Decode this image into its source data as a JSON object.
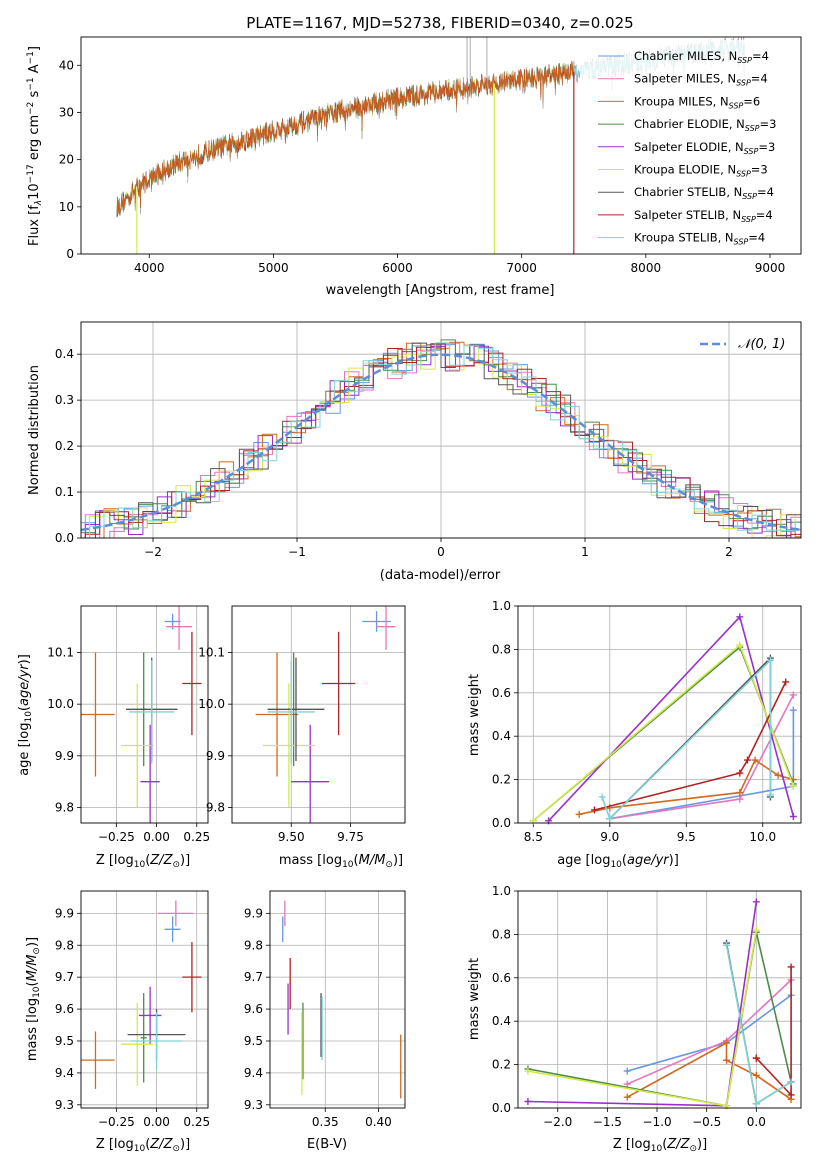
{
  "colors": {
    "chabrier_miles": "#6699e0",
    "salpeter_miles": "#e377c2",
    "kroupa_miles": "#d2691e",
    "chabrier_elodie": "#4a8c4a",
    "salpeter_elodie": "#9b30c8",
    "kroupa_elodie": "#d4e84a",
    "chabrier_stelib": "#555555",
    "salpeter_stelib": "#b22222",
    "kroupa_stelib": "#7fd3d8",
    "grid": "#b0b0b0",
    "gauss": "#5b8ed6"
  },
  "chart_data": [
    {
      "id": "spectrum",
      "type": "line",
      "title": "PLATE=1167, MJD=52738, FIBERID=0340, z=0.025",
      "xlabel": "wavelength [Angstrom, rest frame]",
      "ylabel_parts": [
        "Flux [f",
        "λ",
        "10",
        "−17",
        " erg cm",
        "−2",
        " s",
        "−1",
        " A",
        "−1",
        "]"
      ],
      "xlim": [
        3450,
        9250
      ],
      "ylim": [
        0,
        46
      ],
      "xticks": [
        4000,
        5000,
        6000,
        7000,
        8000,
        9000
      ],
      "yticks": [
        0,
        10,
        20,
        30,
        40
      ],
      "grid": false,
      "legend_position": "top-right",
      "legend": [
        {
          "label": "Chabrier MILES, N",
          "sub": "SSP",
          "val": "=4",
          "color": "chabrier_miles"
        },
        {
          "label": "Salpeter MILES, N",
          "sub": "SSP",
          "val": "=4",
          "color": "salpeter_miles"
        },
        {
          "label": "Kroupa MILES, N",
          "sub": "SSP",
          "val": "=6",
          "color": "kroupa_miles"
        },
        {
          "label": "Chabrier ELODIE, N",
          "sub": "SSP",
          "val": "=3",
          "color": "chabrier_elodie"
        },
        {
          "label": "Salpeter ELODIE, N",
          "sub": "SSP",
          "val": "=3",
          "color": "salpeter_elodie"
        },
        {
          "label": "Kroupa ELODIE, N",
          "sub": "SSP",
          "val": "=3",
          "color": "kroupa_elodie"
        },
        {
          "label": "Chabrier STELIB, N",
          "sub": "SSP",
          "val": "=4",
          "color": "chabrier_stelib"
        },
        {
          "label": "Salpeter STELIB, N",
          "sub": "SSP",
          "val": "=4",
          "color": "salpeter_stelib"
        },
        {
          "label": "Kroupa STELIB, N",
          "sub": "SSP",
          "val": "=4",
          "color": "kroupa_stelib"
        }
      ],
      "continuum": {
        "x": [
          3750,
          3900,
          4000,
          4200,
          4500,
          5000,
          5500,
          6000,
          6500,
          7000,
          7300,
          7500,
          8000,
          8500,
          8800
        ],
        "y": [
          10,
          14,
          16,
          19,
          22,
          26,
          30,
          33,
          35,
          37,
          38,
          39,
          41,
          43,
          44
        ]
      },
      "data_range": [
        3740,
        8800
      ],
      "model_range": [
        3740,
        7420
      ],
      "spikes": [
        {
          "x": 3900,
          "ymin": 0,
          "color": "kroupa_elodie"
        },
        {
          "x": 6780,
          "ymin": 0,
          "color": "kroupa_elodie"
        },
        {
          "x": 7420,
          "ymin": 0,
          "color": "salpeter_stelib"
        }
      ]
    },
    {
      "id": "residuals",
      "type": "line",
      "xlabel": "(data-model)/error",
      "ylabel": "Normed distribution",
      "xlim": [
        -2.5,
        2.5
      ],
      "ylim": [
        0,
        0.47
      ],
      "xticks": [
        -2,
        -1,
        0,
        1,
        2
      ],
      "xtick_labels": [
        "−2",
        "−1",
        "0",
        "1",
        "2"
      ],
      "yticks": [
        0,
        0.1,
        0.2,
        0.3,
        0.4
      ],
      "ytick_labels": [
        "0.0",
        "0.1",
        "0.2",
        "0.3",
        "0.4"
      ],
      "grid": true,
      "legend_position": "top-right",
      "legend_label": "𝒩(0, 1)",
      "bin_width": 0.1,
      "series_colors": [
        "chabrier_miles",
        "salpeter_miles",
        "kroupa_miles",
        "chabrier_elodie",
        "salpeter_elodie",
        "kroupa_elodie",
        "chabrier_stelib",
        "salpeter_stelib",
        "kroupa_stelib"
      ]
    },
    {
      "id": "age_vs_Z",
      "type": "scatter",
      "xlabel": "Z [log10(Z/Z⊙)]",
      "ylabel": "age [log10(age/yr)]",
      "xlim": [
        -0.47,
        0.32
      ],
      "ylim": [
        9.77,
        10.19
      ],
      "xticks": [
        -0.25,
        0.0,
        0.25
      ],
      "xtick_labels": [
        "−0.25",
        "0.00",
        "0.25"
      ],
      "yticks": [
        9.8,
        9.9,
        10.0,
        10.1
      ],
      "ytick_labels": [
        "9.8",
        "9.9",
        "10.0",
        "10.1"
      ],
      "grid": true,
      "points": [
        {
          "x": 0.1,
          "y": 10.16,
          "xerr": 0.05,
          "yerr": 0.015,
          "color": "chabrier_miles"
        },
        {
          "x": 0.14,
          "y": 10.15,
          "xerr": 0.08,
          "yerr": 0.045,
          "color": "salpeter_miles"
        },
        {
          "x": -0.38,
          "y": 9.98,
          "xerr": 0.12,
          "yerr": 0.12,
          "color": "kroupa_miles"
        },
        {
          "x": -0.08,
          "y": 9.99,
          "xerr": 0.02,
          "yerr": 0.11,
          "color": "chabrier_elodie"
        },
        {
          "x": -0.04,
          "y": 9.85,
          "xerr": 0.06,
          "yerr": 0.11,
          "color": "salpeter_elodie"
        },
        {
          "x": -0.12,
          "y": 9.92,
          "xerr": 0.1,
          "yerr": 0.12,
          "color": "kroupa_elodie"
        },
        {
          "x": -0.03,
          "y": 9.99,
          "xerr": 0.16,
          "yerr": 0.1,
          "color": "chabrier_stelib"
        },
        {
          "x": 0.22,
          "y": 10.04,
          "xerr": 0.06,
          "yerr": 0.1,
          "color": "salpeter_stelib"
        },
        {
          "x": -0.03,
          "y": 9.985,
          "xerr": 0.14,
          "yerr": 0.1,
          "color": "kroupa_stelib"
        }
      ]
    },
    {
      "id": "age_vs_mass",
      "type": "scatter",
      "xlabel": "mass [log10(M/M⊙)]",
      "xlim": [
        9.25,
        9.98
      ],
      "ylim": [
        9.77,
        10.19
      ],
      "xticks": [
        9.5,
        9.75
      ],
      "xtick_labels": [
        "9.50",
        "9.75"
      ],
      "yticks": [
        9.8,
        9.9,
        10.0,
        10.1
      ],
      "ytick_labels": [
        "9.8",
        "9.9",
        "10.0",
        "10.1"
      ],
      "grid": true,
      "points": [
        {
          "x": 9.86,
          "y": 10.16,
          "xerr": 0.06,
          "yerr": 0.02,
          "color": "chabrier_miles"
        },
        {
          "x": 9.9,
          "y": 10.15,
          "xerr": 0.04,
          "yerr": 0.045,
          "color": "salpeter_miles"
        },
        {
          "x": 9.44,
          "y": 9.98,
          "xerr": 0.09,
          "yerr": 0.12,
          "color": "kroupa_miles"
        },
        {
          "x": 9.51,
          "y": 9.99,
          "xerr": 0.02,
          "yerr": 0.11,
          "color": "chabrier_elodie"
        },
        {
          "x": 9.58,
          "y": 9.85,
          "xerr": 0.08,
          "yerr": 0.11,
          "color": "salpeter_elodie"
        },
        {
          "x": 9.49,
          "y": 9.92,
          "xerr": 0.11,
          "yerr": 0.12,
          "color": "kroupa_elodie"
        },
        {
          "x": 9.52,
          "y": 9.99,
          "xerr": 0.12,
          "yerr": 0.1,
          "color": "chabrier_stelib"
        },
        {
          "x": 9.7,
          "y": 10.04,
          "xerr": 0.07,
          "yerr": 0.1,
          "color": "salpeter_stelib"
        },
        {
          "x": 9.5,
          "y": 9.985,
          "xerr": 0.1,
          "yerr": 0.1,
          "color": "kroupa_stelib"
        }
      ]
    },
    {
      "id": "weight_vs_age",
      "type": "line",
      "xlabel": "age [log10(age/yr)]",
      "ylabel": "mass weight",
      "xlim": [
        8.4,
        10.25
      ],
      "ylim": [
        0,
        1
      ],
      "xticks": [
        8.5,
        9.0,
        9.5,
        10.0
      ],
      "xtick_labels": [
        "8.5",
        "9.0",
        "9.5",
        "10.0"
      ],
      "yticks": [
        0,
        0.2,
        0.4,
        0.6,
        0.8,
        1.0
      ],
      "ytick_labels": [
        "0.0",
        "0.2",
        "0.4",
        "0.6",
        "0.8",
        "1.0"
      ],
      "grid": true,
      "series": [
        {
          "color": "chabrier_miles",
          "x": [
            9.0,
            10.05,
            10.2,
            10.2
          ],
          "y": [
            0.02,
            0.15,
            0.17,
            0.52
          ]
        },
        {
          "color": "salpeter_miles",
          "x": [
            9.0,
            9.85,
            10.2
          ],
          "y": [
            0.02,
            0.11,
            0.59
          ]
        },
        {
          "color": "kroupa_miles",
          "x": [
            8.8,
            9.0,
            9.85,
            9.95,
            10.1,
            10.2
          ],
          "y": [
            0.04,
            0.07,
            0.14,
            0.29,
            0.22,
            0.2
          ]
        },
        {
          "color": "chabrier_elodie",
          "x": [
            8.5,
            9.85,
            10.2
          ],
          "y": [
            0.01,
            0.81,
            0.18
          ]
        },
        {
          "color": "salpeter_elodie",
          "x": [
            8.6,
            9.85,
            10.2
          ],
          "y": [
            0.01,
            0.95,
            0.03
          ]
        },
        {
          "color": "kroupa_elodie",
          "x": [
            8.5,
            9.85,
            10.2
          ],
          "y": [
            0.01,
            0.82,
            0.17
          ]
        },
        {
          "color": "chabrier_stelib",
          "x": [
            9.0,
            10.05,
            10.05
          ],
          "y": [
            0.02,
            0.76,
            0.12
          ]
        },
        {
          "color": "salpeter_stelib",
          "x": [
            8.9,
            9.85,
            9.9,
            10.15
          ],
          "y": [
            0.06,
            0.23,
            0.29,
            0.65
          ]
        },
        {
          "color": "kroupa_stelib",
          "x": [
            8.95,
            9.0,
            10.05,
            10.05
          ],
          "y": [
            0.12,
            0.02,
            0.75,
            0.13
          ]
        }
      ]
    },
    {
      "id": "mass_vs_Z",
      "type": "scatter",
      "xlabel": "Z [log10(Z/Z⊙)]",
      "ylabel": "mass [log10(M/M⊙)]",
      "xlim": [
        -0.47,
        0.32
      ],
      "ylim": [
        9.29,
        9.97
      ],
      "xticks": [
        -0.25,
        0.0,
        0.25
      ],
      "xtick_labels": [
        "−0.25",
        "0.00",
        "0.25"
      ],
      "yticks": [
        9.3,
        9.4,
        9.5,
        9.6,
        9.7,
        9.8,
        9.9
      ],
      "ytick_labels": [
        "9.3",
        "9.4",
        "9.5",
        "9.6",
        "9.7",
        "9.8",
        "9.9"
      ],
      "grid": true,
      "points": [
        {
          "x": 0.1,
          "y": 9.85,
          "xerr": 0.05,
          "yerr": 0.04,
          "color": "chabrier_miles"
        },
        {
          "x": 0.12,
          "y": 9.9,
          "xerr": 0.11,
          "yerr": 0.04,
          "color": "salpeter_miles"
        },
        {
          "x": -0.38,
          "y": 9.44,
          "xerr": 0.12,
          "yerr": 0.09,
          "color": "kroupa_miles"
        },
        {
          "x": -0.08,
          "y": 9.51,
          "xerr": 0.02,
          "yerr": 0.14,
          "color": "chabrier_elodie"
        },
        {
          "x": -0.04,
          "y": 9.58,
          "xerr": 0.07,
          "yerr": 0.09,
          "color": "salpeter_elodie"
        },
        {
          "x": -0.12,
          "y": 9.49,
          "xerr": 0.1,
          "yerr": 0.13,
          "color": "kroupa_elodie"
        },
        {
          "x": 0.0,
          "y": 9.52,
          "xerr": 0.18,
          "yerr": 0.08,
          "color": "chabrier_stelib"
        },
        {
          "x": 0.22,
          "y": 9.7,
          "xerr": 0.06,
          "yerr": 0.11,
          "color": "salpeter_stelib"
        },
        {
          "x": 0.0,
          "y": 9.5,
          "xerr": 0.16,
          "yerr": 0.09,
          "color": "kroupa_stelib"
        }
      ]
    },
    {
      "id": "mass_vs_ebv",
      "type": "scatter",
      "xlabel": "E(B-V)",
      "xlim": [
        0.298,
        0.425
      ],
      "ylim": [
        9.29,
        9.97
      ],
      "xticks": [
        0.35,
        0.4
      ],
      "xtick_labels": [
        "0.35",
        "0.40"
      ],
      "yticks": [
        9.3,
        9.4,
        9.5,
        9.6,
        9.7,
        9.8,
        9.9
      ],
      "ytick_labels": [
        "9.3",
        "9.4",
        "9.5",
        "9.6",
        "9.7",
        "9.8",
        "9.9"
      ],
      "grid": true,
      "points": [
        {
          "x": 0.31,
          "y": 9.85,
          "xerr": 0.0005,
          "yerr": 0.04,
          "color": "chabrier_miles"
        },
        {
          "x": 0.312,
          "y": 9.9,
          "xerr": 0.0005,
          "yerr": 0.04,
          "color": "salpeter_miles"
        },
        {
          "x": 0.421,
          "y": 9.42,
          "xerr": 0.0005,
          "yerr": 0.1,
          "color": "kroupa_miles"
        },
        {
          "x": 0.329,
          "y": 9.5,
          "xerr": 0.0005,
          "yerr": 0.12,
          "color": "chabrier_elodie"
        },
        {
          "x": 0.315,
          "y": 9.6,
          "xerr": 0.0005,
          "yerr": 0.08,
          "color": "salpeter_elodie"
        },
        {
          "x": 0.328,
          "y": 9.46,
          "xerr": 0.0005,
          "yerr": 0.13,
          "color": "kroupa_elodie"
        },
        {
          "x": 0.346,
          "y": 9.55,
          "xerr": 0.0005,
          "yerr": 0.1,
          "color": "chabrier_stelib"
        },
        {
          "x": 0.317,
          "y": 9.68,
          "xerr": 0.0005,
          "yerr": 0.08,
          "color": "salpeter_stelib"
        },
        {
          "x": 0.347,
          "y": 9.54,
          "xerr": 0.0005,
          "yerr": 0.1,
          "color": "kroupa_stelib"
        }
      ]
    },
    {
      "id": "weight_vs_Z",
      "type": "line",
      "xlabel": "Z [log10(Z/Z⊙)]",
      "ylabel": "mass weight",
      "xlim": [
        -2.4,
        0.45
      ],
      "ylim": [
        0,
        1
      ],
      "xticks": [
        -2.0,
        -1.5,
        -1.0,
        -0.5,
        0.0
      ],
      "xtick_labels": [
        "−2.0",
        "−1.5",
        "−1.0",
        "−0.5",
        "0.0"
      ],
      "yticks": [
        0,
        0.2,
        0.4,
        0.6,
        0.8,
        1.0
      ],
      "ytick_labels": [
        "0.0",
        "0.2",
        "0.4",
        "0.6",
        "0.8",
        "1.0"
      ],
      "grid": true,
      "series": [
        {
          "color": "chabrier_miles",
          "x": [
            -1.3,
            -0.3,
            0.35
          ],
          "y": [
            0.17,
            0.3,
            0.52
          ]
        },
        {
          "color": "salpeter_miles",
          "x": [
            -1.3,
            -0.3,
            0.35
          ],
          "y": [
            0.11,
            0.31,
            0.59
          ]
        },
        {
          "color": "kroupa_miles",
          "x": [
            -1.3,
            -0.3,
            -0.3,
            0.0,
            0.35
          ],
          "y": [
            0.05,
            0.3,
            0.22,
            0.15,
            0.04
          ]
        },
        {
          "color": "chabrier_elodie",
          "x": [
            -2.3,
            -0.3,
            0.0,
            0.35
          ],
          "y": [
            0.18,
            0.01,
            0.81,
            0.12
          ]
        },
        {
          "color": "salpeter_elodie",
          "x": [
            -2.3,
            -0.3,
            0.0
          ],
          "y": [
            0.03,
            0.01,
            0.95
          ]
        },
        {
          "color": "kroupa_elodie",
          "x": [
            -2.3,
            -0.3,
            0.0
          ],
          "y": [
            0.17,
            0.01,
            0.82
          ]
        },
        {
          "color": "chabrier_stelib",
          "x": [
            -0.3,
            0.0,
            0.35
          ],
          "y": [
            0.76,
            0.02,
            0.12
          ]
        },
        {
          "color": "salpeter_stelib",
          "x": [
            0.0,
            0.0,
            0.35,
            0.35
          ],
          "y": [
            0.23,
            0.23,
            0.06,
            0.65
          ]
        },
        {
          "color": "kroupa_stelib",
          "x": [
            -0.3,
            0.0,
            0.35
          ],
          "y": [
            0.75,
            0.02,
            0.12
          ]
        }
      ]
    }
  ]
}
